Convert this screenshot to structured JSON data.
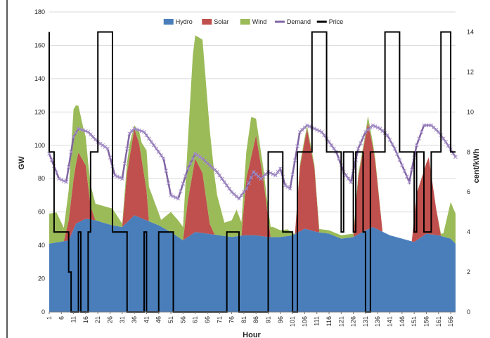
{
  "chart_data": {
    "type": "area",
    "xlabel": "Hour",
    "ylabel": "GW",
    "y2label": "cent/kWh",
    "ylim": [
      0,
      180
    ],
    "yticks": [
      0,
      20,
      40,
      60,
      80,
      100,
      120,
      140,
      160,
      180
    ],
    "y2lim": [
      0,
      15
    ],
    "y2ticks": [
      0,
      2,
      4,
      6,
      8,
      10,
      12,
      14
    ],
    "xlim": [
      1,
      168
    ],
    "xticks": [
      1,
      6,
      11,
      16,
      21,
      26,
      31,
      36,
      41,
      46,
      51,
      56,
      61,
      66,
      71,
      76,
      81,
      86,
      91,
      96,
      101,
      106,
      111,
      116,
      121,
      126,
      131,
      136,
      141,
      146,
      151,
      156,
      161,
      166
    ],
    "legend": "top",
    "gridlines": "horizontal",
    "series_style": {
      "Hydro": "#4a7ebb",
      "Solar": "#c0504d",
      "Wind": "#9bbb59",
      "Demand": "#8064a2",
      "Price": "#000000"
    },
    "stacked_areas": [
      {
        "name": "Hydro",
        "points": [
          [
            1,
            41
          ],
          [
            9,
            43
          ],
          [
            12,
            53
          ],
          [
            16,
            56
          ],
          [
            20,
            55
          ],
          [
            27,
            52
          ],
          [
            31,
            51
          ],
          [
            36,
            58
          ],
          [
            41,
            55
          ],
          [
            46,
            52
          ],
          [
            51,
            48
          ],
          [
            56,
            43
          ],
          [
            61,
            48
          ],
          [
            66,
            47
          ],
          [
            71,
            46
          ],
          [
            76,
            45
          ],
          [
            81,
            46
          ],
          [
            86,
            46
          ],
          [
            91,
            45
          ],
          [
            96,
            45
          ],
          [
            101,
            46
          ],
          [
            106,
            50
          ],
          [
            111,
            48
          ],
          [
            116,
            47
          ],
          [
            121,
            44
          ],
          [
            126,
            45
          ],
          [
            131,
            49
          ],
          [
            134,
            51
          ],
          [
            141,
            46
          ],
          [
            146,
            44
          ],
          [
            151,
            42
          ],
          [
            156,
            47
          ],
          [
            161,
            46
          ],
          [
            166,
            44
          ],
          [
            168,
            41
          ]
        ]
      },
      {
        "name": "Solar",
        "points": [
          [
            1,
            0
          ],
          [
            7,
            0
          ],
          [
            9,
            12
          ],
          [
            11,
            30
          ],
          [
            13,
            42
          ],
          [
            16,
            32
          ],
          [
            18,
            8
          ],
          [
            20,
            0
          ],
          [
            31,
            0
          ],
          [
            33,
            30
          ],
          [
            36,
            52
          ],
          [
            38,
            44
          ],
          [
            41,
            18
          ],
          [
            42,
            0
          ],
          [
            56,
            0
          ],
          [
            58,
            22
          ],
          [
            61,
            44
          ],
          [
            64,
            36
          ],
          [
            67,
            6
          ],
          [
            69,
            0
          ],
          [
            80,
            0
          ],
          [
            82,
            34
          ],
          [
            86,
            60
          ],
          [
            89,
            34
          ],
          [
            92,
            0
          ],
          [
            102,
            0
          ],
          [
            104,
            38
          ],
          [
            107,
            60
          ],
          [
            110,
            38
          ],
          [
            112,
            0
          ],
          [
            126,
            0
          ],
          [
            128,
            34
          ],
          [
            132,
            64
          ],
          [
            135,
            40
          ],
          [
            138,
            0
          ],
          [
            150,
            0
          ],
          [
            152,
            28
          ],
          [
            157,
            46
          ],
          [
            160,
            16
          ],
          [
            162,
            0
          ],
          [
            168,
            0
          ]
        ]
      },
      {
        "name": "Wind",
        "points": [
          [
            1,
            18
          ],
          [
            4,
            18
          ],
          [
            7,
            8
          ],
          [
            9,
            18
          ],
          [
            11,
            42
          ],
          [
            13,
            28
          ],
          [
            15,
            20
          ],
          [
            17,
            14
          ],
          [
            20,
            10
          ],
          [
            27,
            10
          ],
          [
            31,
            2
          ],
          [
            34,
            8
          ],
          [
            36,
            2
          ],
          [
            39,
            10
          ],
          [
            41,
            24
          ],
          [
            44,
            14
          ],
          [
            47,
            4
          ],
          [
            51,
            12
          ],
          [
            54,
            10
          ],
          [
            56,
            8
          ],
          [
            58,
            36
          ],
          [
            60,
            70
          ],
          [
            61,
            74
          ],
          [
            64,
            80
          ],
          [
            67,
            56
          ],
          [
            70,
            24
          ],
          [
            73,
            8
          ],
          [
            76,
            10
          ],
          [
            78,
            16
          ],
          [
            80,
            8
          ],
          [
            82,
            16
          ],
          [
            84,
            24
          ],
          [
            86,
            10
          ],
          [
            88,
            8
          ],
          [
            90,
            6
          ],
          [
            93,
            6
          ],
          [
            96,
            4
          ],
          [
            99,
            4
          ],
          [
            102,
            0
          ],
          [
            104,
            2
          ],
          [
            107,
            2
          ],
          [
            110,
            2
          ],
          [
            112,
            2
          ],
          [
            116,
            2
          ],
          [
            121,
            2
          ],
          [
            124,
            2
          ],
          [
            128,
            2
          ],
          [
            131,
            2
          ],
          [
            132,
            4
          ],
          [
            135,
            2
          ],
          [
            138,
            0
          ],
          [
            146,
            0
          ],
          [
            150,
            0
          ],
          [
            156,
            0
          ],
          [
            160,
            0
          ],
          [
            163,
            2
          ],
          [
            166,
            22
          ],
          [
            168,
            18
          ]
        ]
      }
    ],
    "lines": [
      {
        "name": "Demand",
        "points": [
          [
            1,
            95
          ],
          [
            5,
            80
          ],
          [
            8,
            78
          ],
          [
            11,
            105
          ],
          [
            13,
            110
          ],
          [
            17,
            108
          ],
          [
            21,
            102
          ],
          [
            25,
            98
          ],
          [
            28,
            82
          ],
          [
            31,
            80
          ],
          [
            34,
            107
          ],
          [
            36,
            110
          ],
          [
            40,
            108
          ],
          [
            44,
            100
          ],
          [
            48,
            92
          ],
          [
            51,
            70
          ],
          [
            54,
            68
          ],
          [
            58,
            86
          ],
          [
            61,
            95
          ],
          [
            64,
            92
          ],
          [
            67,
            88
          ],
          [
            70,
            84
          ],
          [
            73,
            78
          ],
          [
            76,
            72
          ],
          [
            79,
            68
          ],
          [
            82,
            74
          ],
          [
            85,
            84
          ],
          [
            88,
            80
          ],
          [
            91,
            84
          ],
          [
            94,
            82
          ],
          [
            96,
            86
          ],
          [
            98,
            76
          ],
          [
            100,
            74
          ],
          [
            104,
            108
          ],
          [
            107,
            112
          ],
          [
            110,
            110
          ],
          [
            113,
            108
          ],
          [
            116,
            102
          ],
          [
            119,
            96
          ],
          [
            122,
            84
          ],
          [
            125,
            78
          ],
          [
            128,
            98
          ],
          [
            131,
            108
          ],
          [
            134,
            112
          ],
          [
            137,
            110
          ],
          [
            140,
            106
          ],
          [
            143,
            98
          ],
          [
            146,
            88
          ],
          [
            149,
            78
          ],
          [
            152,
            100
          ],
          [
            155,
            112
          ],
          [
            158,
            112
          ],
          [
            161,
            108
          ],
          [
            164,
            102
          ],
          [
            168,
            93
          ]
        ]
      },
      {
        "name": "Price",
        "axis": "y2",
        "points": [
          [
            1,
            14
          ],
          [
            1,
            8
          ],
          [
            3,
            8
          ],
          [
            3,
            4
          ],
          [
            9,
            4
          ],
          [
            9,
            2
          ],
          [
            10,
            2
          ],
          [
            10,
            0
          ],
          [
            13,
            0
          ],
          [
            13,
            4
          ],
          [
            14,
            4
          ],
          [
            14,
            0
          ],
          [
            17,
            0
          ],
          [
            17,
            4
          ],
          [
            18,
            4
          ],
          [
            18,
            8
          ],
          [
            21,
            8
          ],
          [
            21,
            14
          ],
          [
            27,
            14
          ],
          [
            27,
            4
          ],
          [
            33,
            4
          ],
          [
            33,
            0
          ],
          [
            40,
            0
          ],
          [
            40,
            4
          ],
          [
            41,
            4
          ],
          [
            41,
            0
          ],
          [
            46,
            0
          ],
          [
            46,
            4
          ],
          [
            52,
            4
          ],
          [
            52,
            0
          ],
          [
            74,
            0
          ],
          [
            74,
            4
          ],
          [
            79,
            4
          ],
          [
            79,
            0
          ],
          [
            91,
            0
          ],
          [
            91,
            8
          ],
          [
            97,
            8
          ],
          [
            97,
            4
          ],
          [
            101,
            4
          ],
          [
            101,
            0
          ],
          [
            103,
            0
          ],
          [
            103,
            8
          ],
          [
            109,
            8
          ],
          [
            109,
            14
          ],
          [
            115,
            14
          ],
          [
            115,
            8
          ],
          [
            121,
            8
          ],
          [
            121,
            4
          ],
          [
            122,
            4
          ],
          [
            122,
            8
          ],
          [
            126,
            8
          ],
          [
            126,
            4
          ],
          [
            127,
            4
          ],
          [
            127,
            8
          ],
          [
            130,
            8
          ],
          [
            130,
            4
          ],
          [
            131,
            4
          ],
          [
            131,
            0
          ],
          [
            133,
            0
          ],
          [
            133,
            8
          ],
          [
            139,
            8
          ],
          [
            139,
            14
          ],
          [
            145,
            14
          ],
          [
            145,
            8
          ],
          [
            151,
            8
          ],
          [
            151,
            4
          ],
          [
            152,
            4
          ],
          [
            152,
            8
          ],
          [
            155,
            8
          ],
          [
            155,
            4
          ],
          [
            158,
            4
          ],
          [
            158,
            8
          ],
          [
            162,
            8
          ],
          [
            162,
            14
          ],
          [
            166,
            14
          ],
          [
            166,
            8
          ],
          [
            168,
            8
          ]
        ]
      }
    ]
  }
}
